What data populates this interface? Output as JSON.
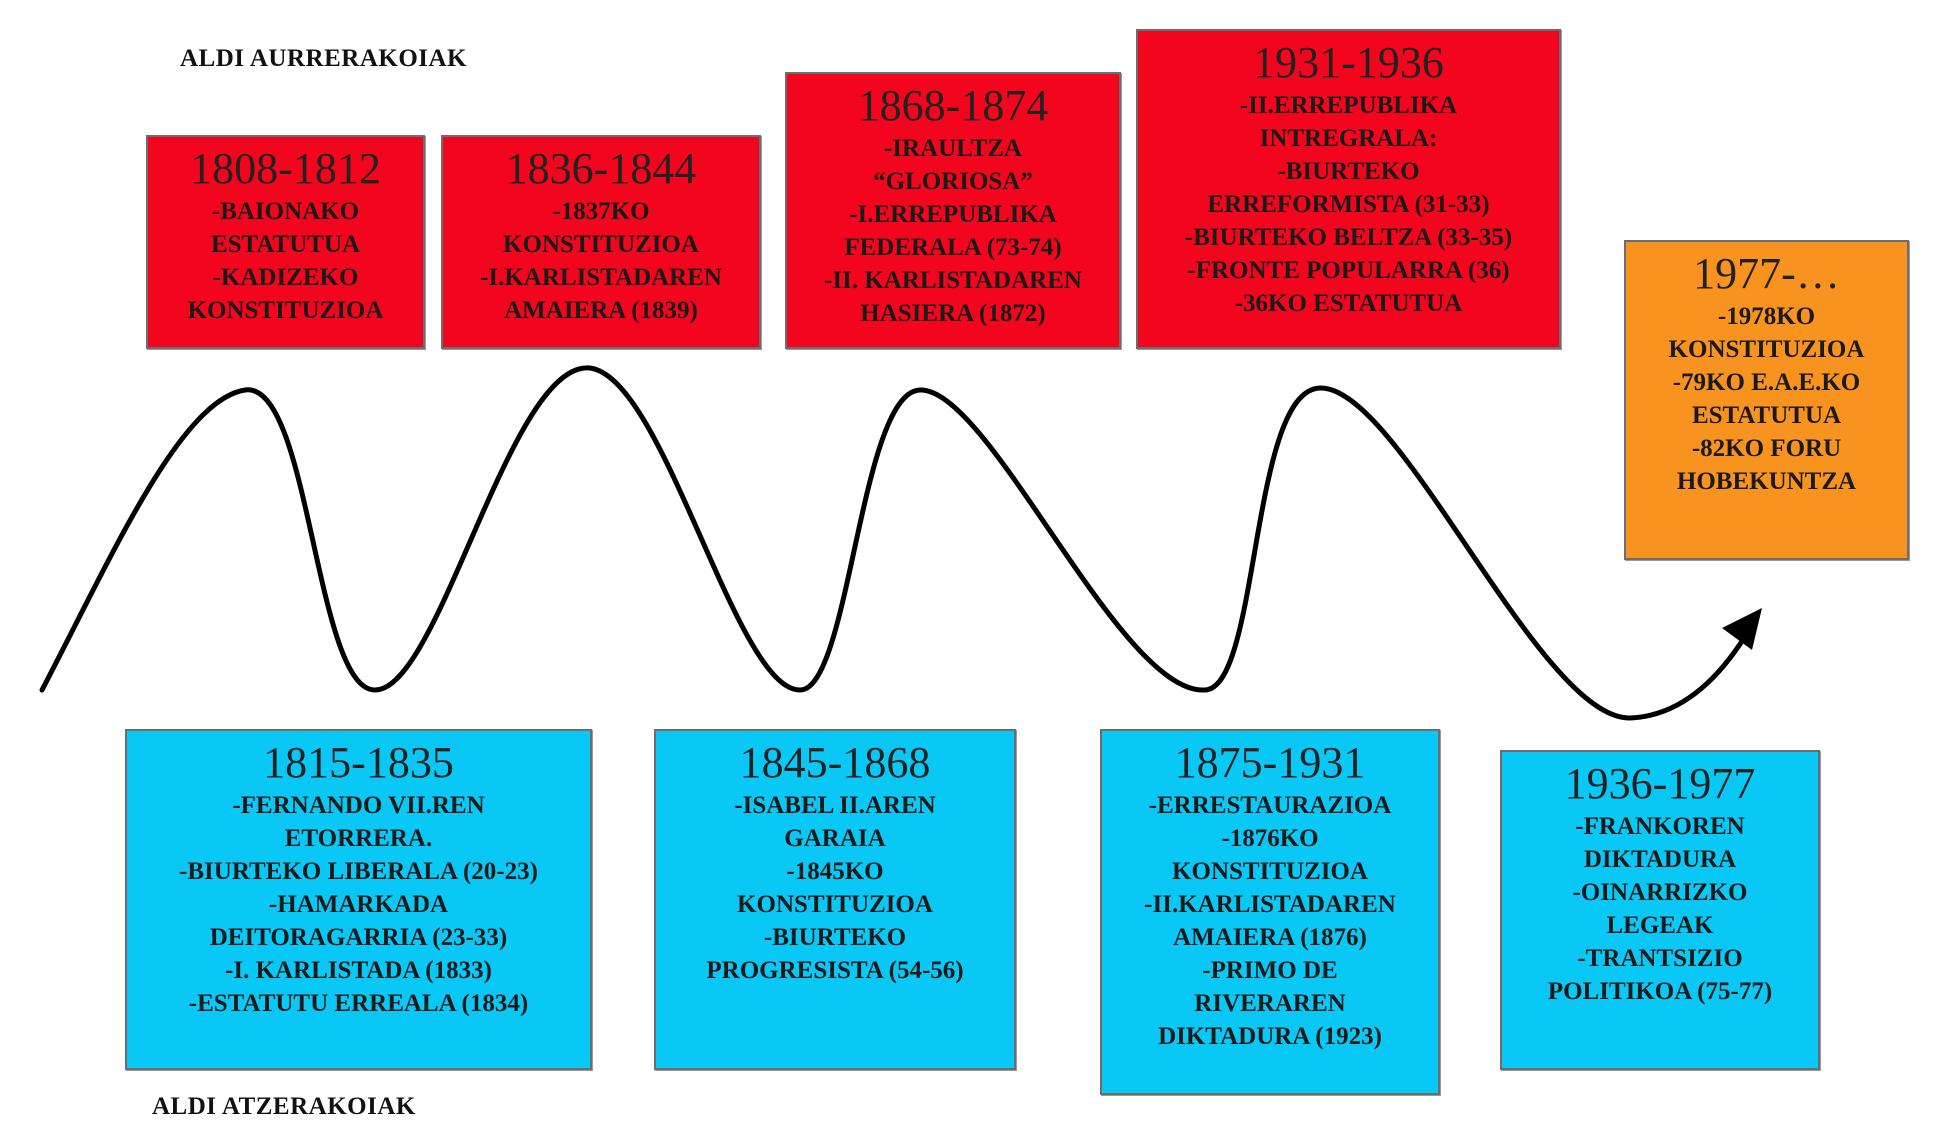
{
  "labels": {
    "top": "ALDI AURRERAKOIAK",
    "bottom": "ALDI ATZERAKOIAK"
  },
  "colors": {
    "progressive": "#f3051d",
    "regressive": "#0ac8f5",
    "current": "#f7931e",
    "curve": "#000000"
  },
  "progressive_periods": [
    {
      "period": "1808-1812",
      "events": [
        "-BAIONAKO",
        "ESTATUTUA",
        "-KADIZEKO",
        "KONSTITUZIOA"
      ]
    },
    {
      "period": "1836-1844",
      "events": [
        "-1837KO",
        "KONSTITUZIOA",
        "-I.KARLISTADAREN",
        "AMAIERA (1839)"
      ]
    },
    {
      "period": "1868-1874",
      "events": [
        "-IRAULTZA",
        "“GLORIOSA”",
        "-I.ERREPUBLIKA",
        "FEDERALA (73-74)",
        "-II. KARLISTADAREN",
        "HASIERA (1872)"
      ]
    },
    {
      "period": "1931-1936",
      "events": [
        "-II.ERREPUBLIKA",
        "INTREGRALA:",
        "-BIURTEKO",
        "ERREFORMISTA (31-33)",
        "-BIURTEKO BELTZA (33-35)",
        "-FRONTE POPULARRA (36)",
        "-36KO ESTATUTUA"
      ]
    }
  ],
  "regressive_periods": [
    {
      "period": "1815-1835",
      "events": [
        "-FERNANDO VII.REN",
        "ETORRERA.",
        "-BIURTEKO LIBERALA (20-23)",
        "-HAMARKADA",
        "DEITORAGARRIA (23-33)",
        "-I. KARLISTADA (1833)",
        "-ESTATUTU ERREALA (1834)"
      ]
    },
    {
      "period": "1845-1868",
      "events": [
        "-ISABEL II.AREN",
        "GARAIA",
        "-1845KO",
        "KONSTITUZIOA",
        "-BIURTEKO",
        "PROGRESISTA (54-56)"
      ]
    },
    {
      "period": "1875-1931",
      "events": [
        "-ERRESTAURAZIOA",
        "-1876KO",
        "KONSTITUZIOA",
        "-II.KARLISTADAREN",
        "AMAIERA (1876)",
        "-PRIMO DE",
        "RIVERAREN",
        "DIKTADURA (1923)"
      ]
    },
    {
      "period": "1936-1977",
      "events": [
        "-FRANKOREN",
        "DIKTADURA",
        "-OINARRIZKO",
        "LEGEAK",
        "-TRANTSIZIO",
        "POLITIKOA (75-77)"
      ]
    }
  ],
  "current_period": {
    "period": "1977-…",
    "events": [
      "-1978KO",
      "KONSTITUZIOA",
      "-79KO E.A.E.KO",
      "ESTATUTUA",
      "-82KO FORU",
      "HOBEKUNTZA"
    ]
  }
}
